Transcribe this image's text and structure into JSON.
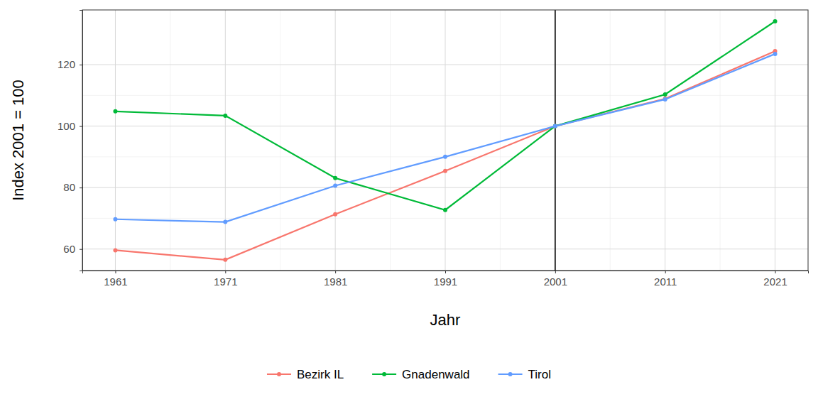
{
  "chart_data": {
    "type": "line",
    "x_label": "Jahr",
    "y_label": "Index 2001 = 100",
    "x": [
      1961,
      1971,
      1981,
      1991,
      2001,
      2011,
      2021
    ],
    "series": [
      {
        "name": "Bezirk IL",
        "color": "#F8766D",
        "marker": "circle",
        "line_style": "solid",
        "values": [
          59.6,
          56.5,
          71.3,
          85.4,
          100,
          108.9,
          124.4
        ]
      },
      {
        "name": "Gnadenwald",
        "color": "#00BA38",
        "marker": "circle",
        "line_style": "solid",
        "values": [
          104.8,
          103.4,
          83.1,
          72.7,
          100,
          110.3,
          134.1
        ]
      },
      {
        "name": "Tirol",
        "color": "#619CFF",
        "marker": "circle",
        "line_style": "solid",
        "values": [
          69.7,
          68.8,
          80.6,
          90.0,
          100,
          108.7,
          123.5
        ]
      }
    ],
    "vlines": [
      2001
    ],
    "xlim": [
      1958,
      2024
    ],
    "xticks": [
      1961,
      1971,
      1981,
      1991,
      2001,
      2011,
      2021
    ],
    "ylim": [
      53,
      137.8
    ],
    "yticks": [
      60,
      80,
      100,
      120
    ],
    "grid": true,
    "legend": "bottom"
  }
}
